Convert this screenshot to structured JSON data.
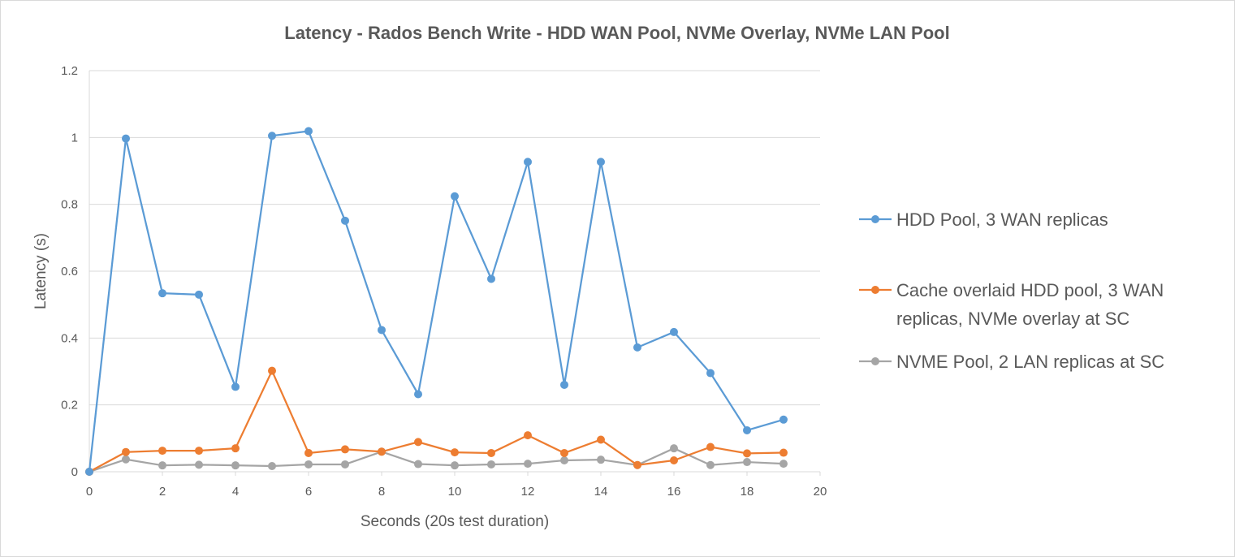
{
  "chart_data": {
    "type": "line",
    "title": "Latency - Rados Bench Write - HDD WAN Pool, NVMe Overlay, NVMe LAN Pool",
    "xlabel": "Seconds (20s test duration)",
    "ylabel": "Latency (s)",
    "xlim": [
      0,
      20
    ],
    "ylim": [
      0,
      1.2
    ],
    "x_ticks": [
      "0",
      "2",
      "4",
      "6",
      "8",
      "10",
      "12",
      "14",
      "16",
      "18",
      "20"
    ],
    "y_ticks": [
      "0",
      "0.2",
      "0.4",
      "0.6",
      "0.8",
      "1",
      "1.2"
    ],
    "grid": "horizontal",
    "legend_position": "right",
    "x": [
      0,
      1,
      2,
      3,
      4,
      5,
      6,
      7,
      8,
      9,
      10,
      11,
      12,
      13,
      14,
      15,
      16,
      17,
      18,
      19
    ],
    "series": [
      {
        "name": "HDD Pool, 3 WAN replicas",
        "legend_lines": [
          "HDD Pool, 3 WAN replicas"
        ],
        "color": "#5B9BD5",
        "values": [
          0.0,
          0.997,
          0.534,
          0.53,
          0.254,
          1.005,
          1.019,
          0.751,
          0.424,
          0.232,
          0.824,
          0.577,
          0.927,
          0.26,
          0.927,
          0.372,
          0.418,
          0.295,
          0.124,
          0.156
        ]
      },
      {
        "name": "Cache overlaid HDD pool, 3 WAN replicas, NVMe overlay at SC",
        "legend_lines": [
          "Cache overlaid HDD pool, 3 WAN",
          "replicas, NVMe overlay at SC"
        ],
        "color": "#ED7D31",
        "values": [
          0.0,
          0.059,
          0.063,
          0.063,
          0.07,
          0.302,
          0.056,
          0.067,
          0.06,
          0.089,
          0.058,
          0.056,
          0.109,
          0.056,
          0.096,
          0.02,
          0.034,
          0.074,
          0.055,
          0.057
        ]
      },
      {
        "name": "NVME Pool, 2 LAN replicas at SC",
        "legend_lines": [
          "NVME Pool, 2 LAN replicas at SC"
        ],
        "color": "#A5A5A5",
        "values": [
          0.0,
          0.037,
          0.019,
          0.021,
          0.019,
          0.017,
          0.022,
          0.022,
          0.06,
          0.023,
          0.019,
          0.022,
          0.024,
          0.034,
          0.036,
          0.02,
          0.07,
          0.02,
          0.029,
          0.024
        ]
      }
    ]
  }
}
